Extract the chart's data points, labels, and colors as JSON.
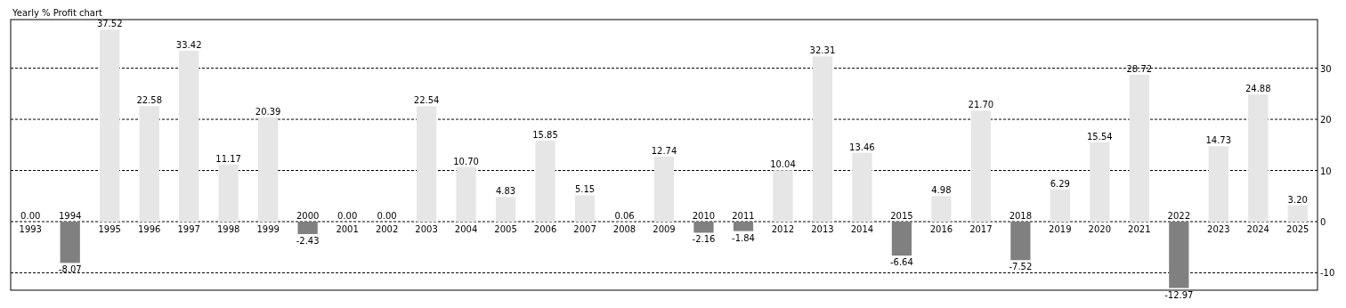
{
  "chart_data": {
    "type": "bar",
    "title": "Yearly % Profit chart",
    "categories": [
      "1993",
      "1994",
      "1995",
      "1996",
      "1997",
      "1998",
      "1999",
      "2000",
      "2001",
      "2002",
      "2003",
      "2004",
      "2005",
      "2006",
      "2007",
      "2008",
      "2009",
      "2010",
      "2011",
      "2012",
      "2013",
      "2014",
      "2015",
      "2016",
      "2017",
      "2018",
      "2019",
      "2020",
      "2021",
      "2022",
      "2023",
      "2024",
      "2025"
    ],
    "values": [
      0,
      -8.07,
      37.52,
      22.58,
      33.42,
      11.17,
      20.39,
      -2.43,
      0,
      0,
      22.54,
      10.7,
      4.83,
      15.85,
      5.15,
      0.06,
      12.74,
      -2.16,
      -1.84,
      10.04,
      32.31,
      13.46,
      -6.64,
      4.98,
      21.7,
      -7.52,
      6.29,
      15.54,
      28.72,
      -12.97,
      14.73,
      24.88,
      3.2
    ],
    "value_labels": [
      "0.00",
      "-8.07",
      "37.52",
      "22.58",
      "33.42",
      "11.17",
      "20.39",
      "-2.43",
      "0.00",
      "0.00",
      "22.54",
      "10.70",
      "4.83",
      "15.85",
      "5.15",
      "0.06",
      "12.74",
      "-2.16",
      "-1.84",
      "10.04",
      "32.31",
      "13.46",
      "-6.64",
      "4.98",
      "21.70",
      "-7.52",
      "6.29",
      "15.54",
      "28.72",
      "-12.97",
      "14.73",
      "24.88",
      "3.20"
    ],
    "colors": [
      "#e6e6e6",
      "#808080",
      "#e6e6e6",
      "#e6e6e6",
      "#e6e6e6",
      "#e6e6e6",
      "#e6e6e6",
      "#808080",
      "#e6e6e6",
      "#e6e6e6",
      "#e6e6e6",
      "#e6e6e6",
      "#e6e6e6",
      "#e6e6e6",
      "#e6e6e6",
      "#e6e6e6",
      "#e6e6e6",
      "#808080",
      "#808080",
      "#e6e6e6",
      "#e6e6e6",
      "#e6e6e6",
      "#808080",
      "#e6e6e6",
      "#e6e6e6",
      "#808080",
      "#e6e6e6",
      "#e6e6e6",
      "#e6e6e6",
      "#808080",
      "#e6e6e6",
      "#e6e6e6",
      "#e6e6e6"
    ],
    "ylim": [
      -13.4,
      39.5
    ],
    "yticks": [
      -10,
      0,
      10,
      20,
      30
    ],
    "grid": "y"
  }
}
